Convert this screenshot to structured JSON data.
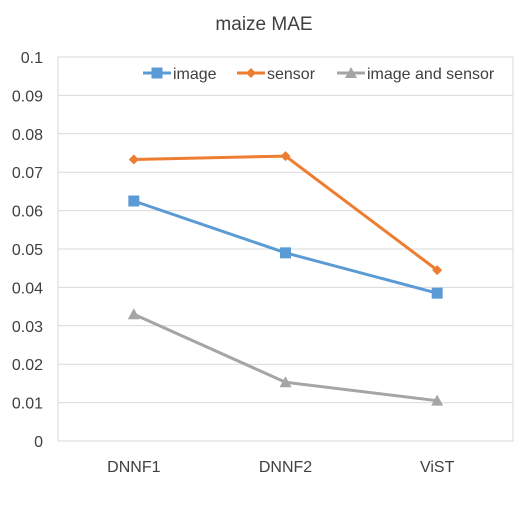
{
  "chart_data": {
    "type": "line",
    "title": "maize MAE",
    "categories": [
      "DNNF1",
      "DNNF2",
      "ViST"
    ],
    "ylim": [
      0,
      0.1
    ],
    "yticks": [
      "0",
      "0.01",
      "0.02",
      "0.03",
      "0.04",
      "0.05",
      "0.06",
      "0.07",
      "0.08",
      "0.09",
      "0.1"
    ],
    "grid": true,
    "legend_position": "top-right",
    "series": [
      {
        "name": "image",
        "values": [
          0.0625,
          0.049,
          0.0385
        ],
        "color": "#5b9bd5",
        "marker": "square"
      },
      {
        "name": "sensor",
        "values": [
          0.0733,
          0.0742,
          0.0445
        ],
        "color": "#ed7d31",
        "marker": "diamond"
      },
      {
        "name": "image and sensor",
        "values": [
          0.033,
          0.0153,
          0.0105
        ],
        "color": "#a5a5a5",
        "marker": "triangle"
      }
    ]
  }
}
